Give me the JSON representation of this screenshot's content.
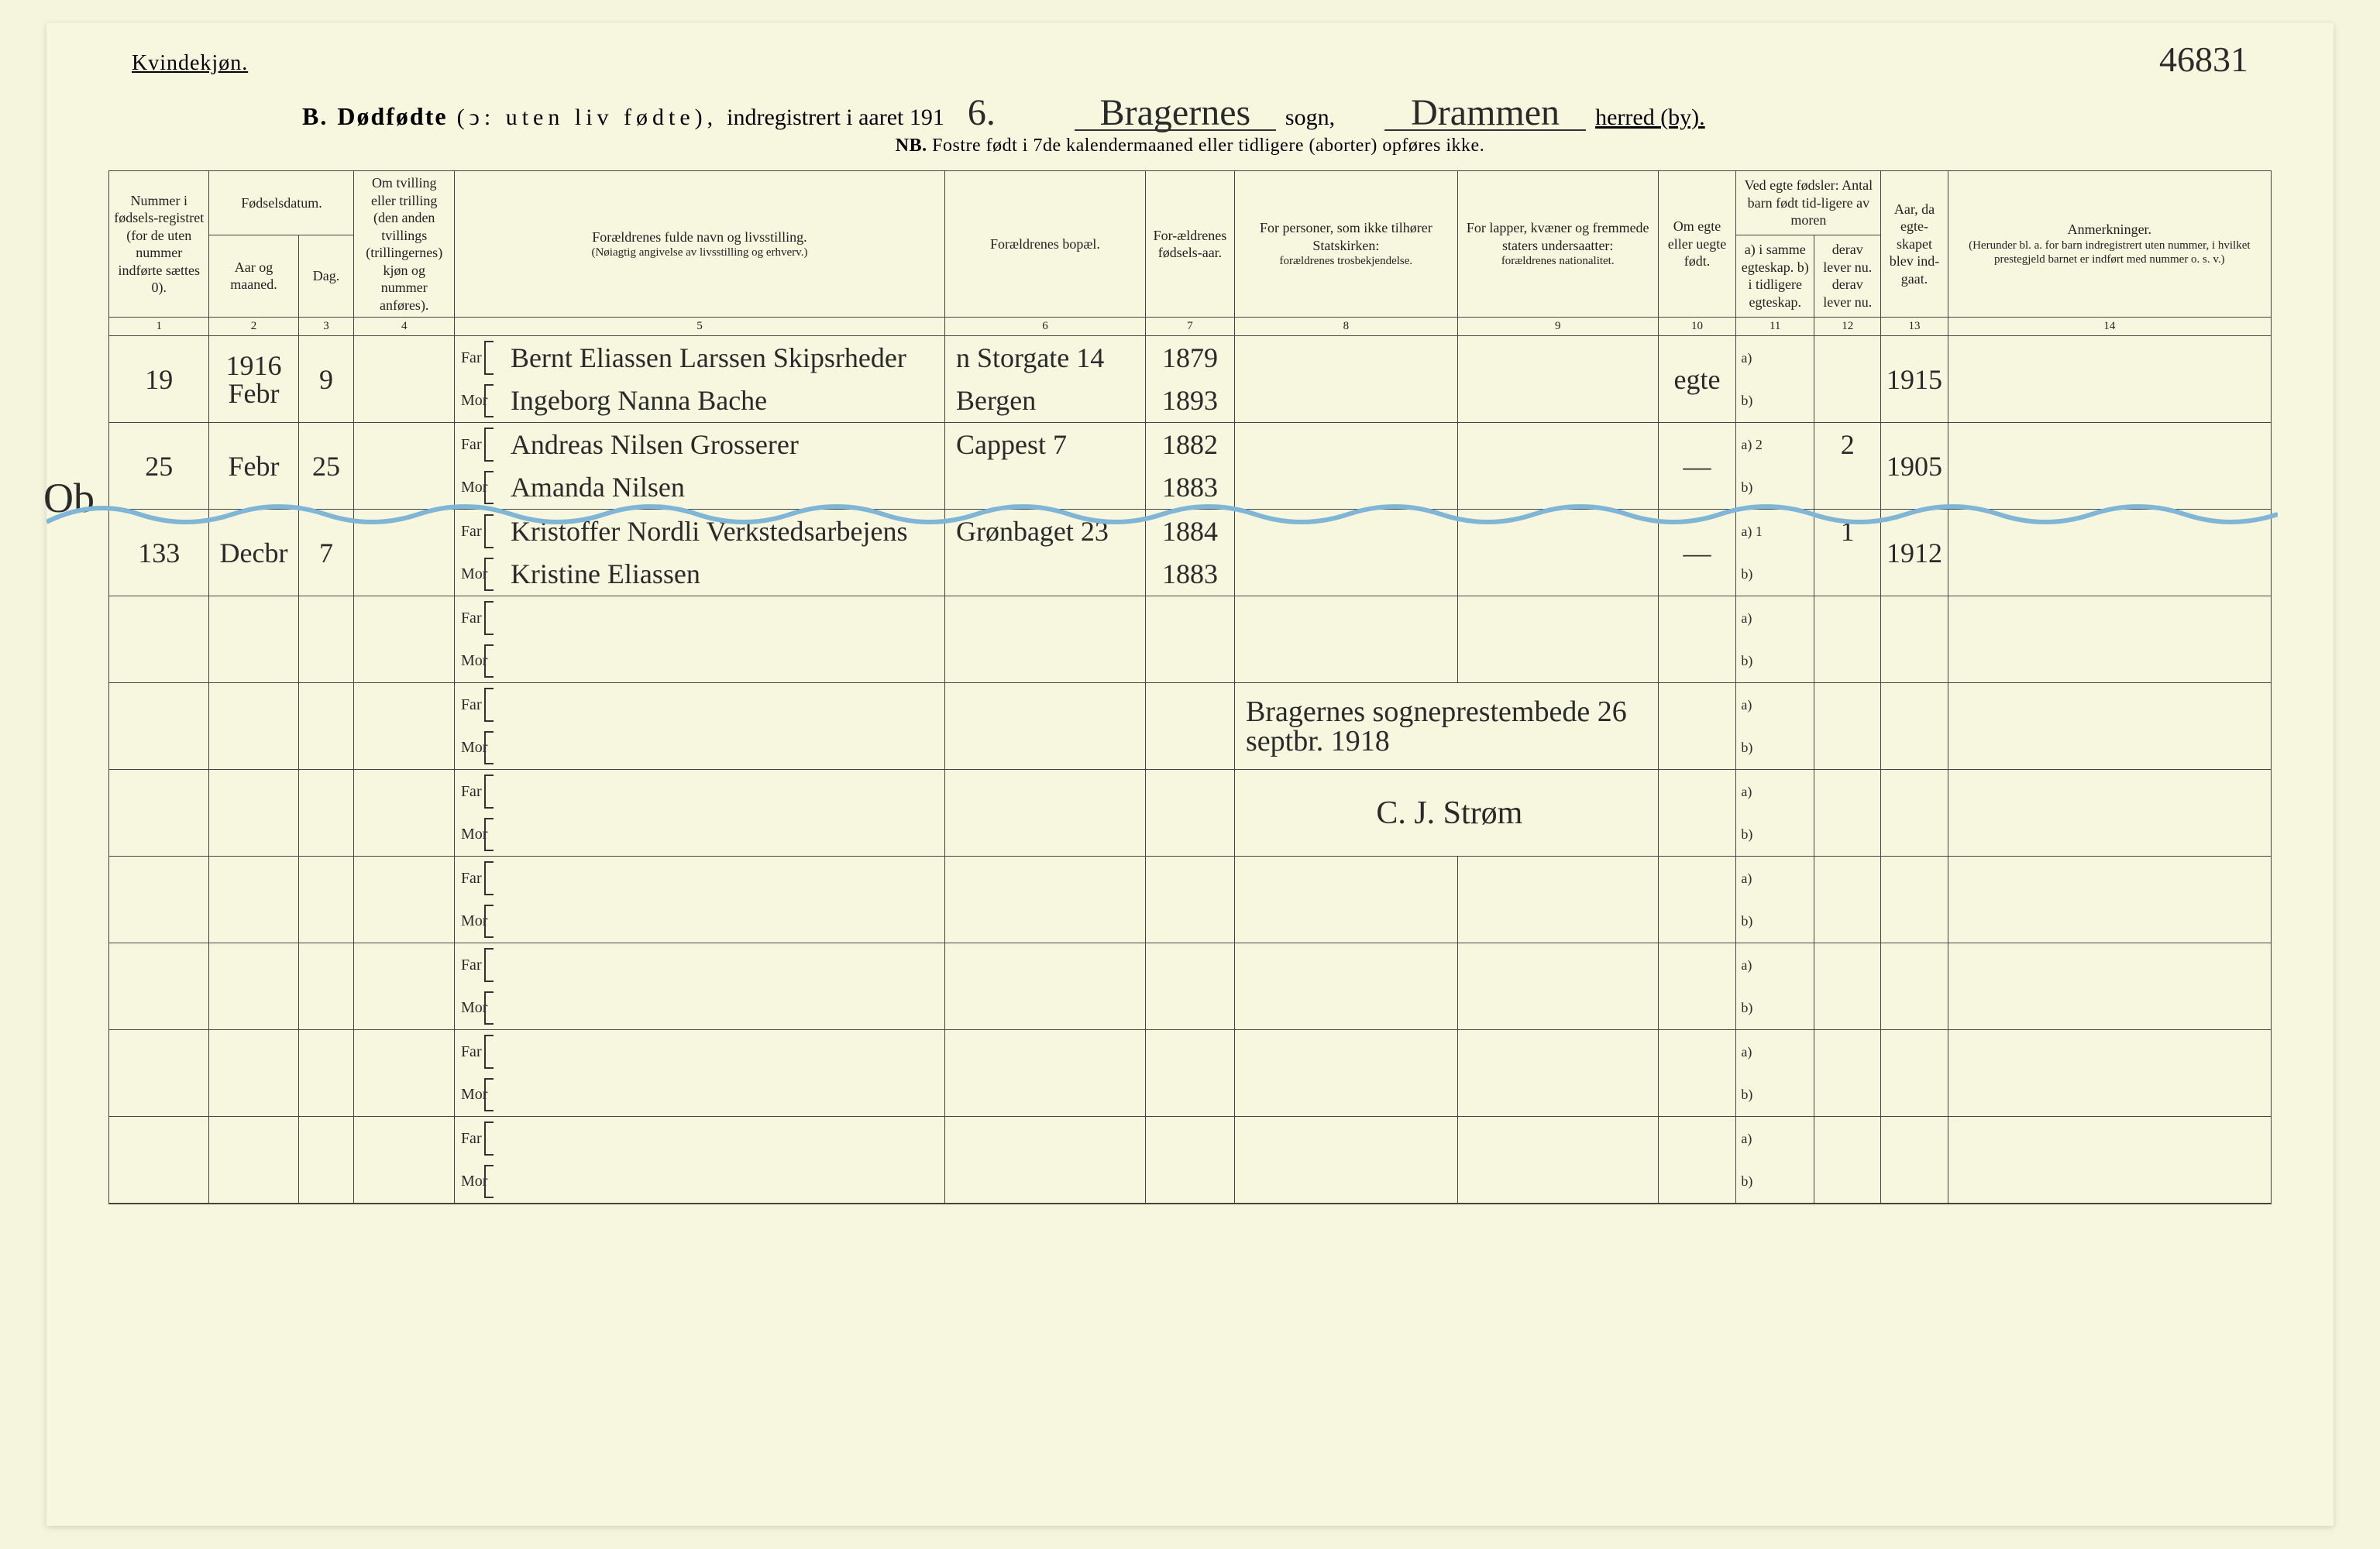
{
  "page_number": "46831",
  "header": {
    "gender": "Kvindekjøn.",
    "section_letter": "B.",
    "title_bold": "Dødfødte",
    "title_paren": "(ↄ: uten liv fødte),",
    "title_rest": "indregistrert i aaret 191",
    "year_suffix": "6.",
    "parish_value": "Bragernes",
    "parish_label": "sogn,",
    "district_value": "Drammen",
    "district_label": "herred (by).",
    "nb_prefix": "NB.",
    "nb_text": "Fostre født i 7de kalendermaaned eller tidligere (aborter) opføres ikke."
  },
  "columns": {
    "c1": "Nummer i fødsels-registret (for de uten nummer indførte sættes 0).",
    "c_fd": "Fødselsdatum.",
    "c2": "Aar og maaned.",
    "c3": "Dag.",
    "c4": "Om tvilling eller trilling (den anden tvillings (trillingernes) kjøn og nummer anføres).",
    "c5_top": "Forældrenes fulde navn og livsstilling.",
    "c5_sub": "(Nøiagtig angivelse av livsstilling og erhverv.)",
    "c6": "Forældrenes bopæl.",
    "c7": "For-ældrenes fødsels-aar.",
    "c8_top": "For personer, som ikke tilhører Statskirken:",
    "c8_sub": "forældrenes trosbekjendelse.",
    "c9_top": "For lapper, kvæner og fremmede staters undersaatter:",
    "c9_sub": "forældrenes nationalitet.",
    "c10": "Om egte eller uegte født.",
    "c11_12_top": "Ved egte fødsler: Antal barn født tid-ligere av moren",
    "c11": "a) i samme egteskap.  b) i tidligere egteskap.",
    "c12": "derav lever nu.  derav lever nu.",
    "c13": "Aar, da egte-skapet blev ind-gaat.",
    "c14_top": "Anmerkninger.",
    "c14_sub": "(Herunder bl. a. for barn indregistrert uten nummer, i hvilket prestegjeld barnet er indført med nummer o. s. v.)"
  },
  "colnums": [
    "1",
    "2",
    "3",
    "4",
    "5",
    "6",
    "7",
    "8",
    "9",
    "10",
    "11",
    "12",
    "13",
    "14"
  ],
  "far_label": "Far",
  "mor_label": "Mor",
  "ab_a": "a)",
  "ab_b": "b)",
  "rows": [
    {
      "num": "19",
      "aar_top": "1916",
      "aar": "Febr",
      "dag": "9",
      "far": "Bernt Eliassen Larssen  Skipsrheder",
      "mor": "Ingeborg Nanna Bache",
      "bop_far": "n Storgate 14",
      "bop_mor": "Bergen",
      "fod_far": "1879",
      "fod_mor": "1893",
      "egte": "egte",
      "a": "",
      "b": "",
      "aaret": "1915"
    },
    {
      "num": "25",
      "aar": "Febr",
      "dag": "25",
      "far": "Andreas Nilsen   Grosserer",
      "mor": "Amanda Nilsen",
      "bop_far": "Cappest 7",
      "bop_mor": "",
      "fod_far": "1882",
      "fod_mor": "1883",
      "egte": "—",
      "a": "2",
      "b": "2",
      "aaret": "1905"
    },
    {
      "num": "133",
      "aar": "Decbr",
      "dag": "7",
      "far": "Kristoffer Nordli   Verkstedsarbejens",
      "mor": "Kristine Eliassen",
      "bop_far": "Grønbaget 23",
      "bop_mor": "",
      "fod_far": "1884",
      "fod_mor": "1883",
      "egte": "—",
      "a": "1",
      "b": "1",
      "aaret": "1912"
    }
  ],
  "notes": {
    "line1": "Bragernes sogneprestembede 26 septbr. 1918",
    "signature": "C. J. Strøm"
  },
  "margin_note": "Ob",
  "colors": {
    "paper": "#f7f6de",
    "ink": "#2a2a2a",
    "border": "#444444",
    "wave": "#7fb6d6"
  }
}
